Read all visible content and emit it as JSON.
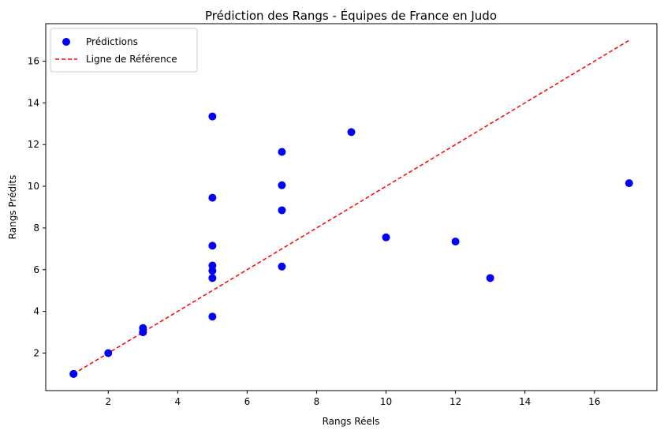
{
  "chart_data": {
    "type": "scatter",
    "title": "Prédiction des Rangs - Équipes de France en Judo",
    "xlabel": "Rangs Réels",
    "ylabel": "Rangs Prédits",
    "xlim": [
      0.2,
      17.8
    ],
    "ylim": [
      0.2,
      17.8
    ],
    "xticks": [
      2,
      4,
      6,
      8,
      10,
      12,
      14,
      16
    ],
    "yticks": [
      2,
      4,
      6,
      8,
      10,
      12,
      14,
      16
    ],
    "grid": false,
    "legend_position": "top-left",
    "series": [
      {
        "name": "Prédictions",
        "kind": "scatter",
        "color": "#0000ff",
        "points": [
          {
            "x": 1,
            "y": 1.0
          },
          {
            "x": 1,
            "y": 1.0
          },
          {
            "x": 2,
            "y": 2.0
          },
          {
            "x": 3,
            "y": 3.0
          },
          {
            "x": 3,
            "y": 3.0
          },
          {
            "x": 3,
            "y": 3.2
          },
          {
            "x": 5,
            "y": 13.35
          },
          {
            "x": 5,
            "y": 9.45
          },
          {
            "x": 5,
            "y": 7.15
          },
          {
            "x": 5,
            "y": 6.2
          },
          {
            "x": 5,
            "y": 5.95
          },
          {
            "x": 5,
            "y": 5.6
          },
          {
            "x": 5,
            "y": 3.75
          },
          {
            "x": 7,
            "y": 11.65
          },
          {
            "x": 7,
            "y": 10.05
          },
          {
            "x": 7,
            "y": 8.85
          },
          {
            "x": 7,
            "y": 6.15
          },
          {
            "x": 9,
            "y": 12.6
          },
          {
            "x": 10,
            "y": 7.55
          },
          {
            "x": 12,
            "y": 7.35
          },
          {
            "x": 13,
            "y": 5.6
          },
          {
            "x": 17,
            "y": 10.15
          }
        ]
      },
      {
        "name": "Ligne de Référence",
        "kind": "line",
        "style": "dashed",
        "color": "#ff0000",
        "points": [
          {
            "x": 1,
            "y": 1
          },
          {
            "x": 17,
            "y": 17
          }
        ]
      }
    ]
  }
}
